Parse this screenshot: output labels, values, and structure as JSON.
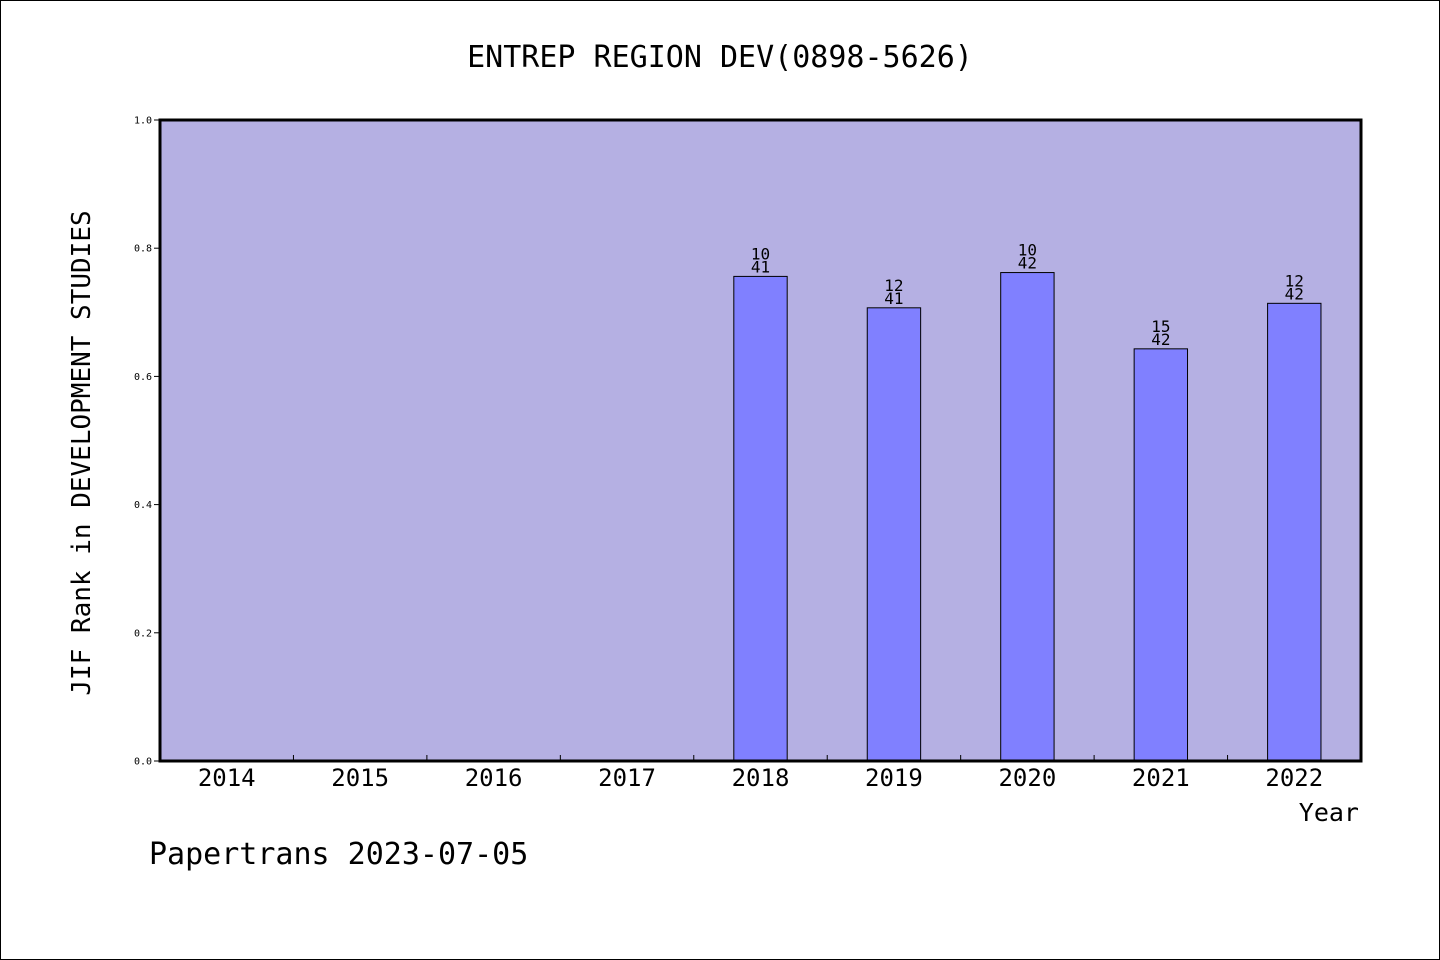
{
  "chart_data": {
    "type": "bar",
    "title": "ENTREP REGION DEV(0898-5626)",
    "xlabel": "Year",
    "ylabel": "JIF Rank in DEVELOPMENT STUDIES",
    "categories": [
      "2014",
      "2015",
      "2016",
      "2017",
      "2018",
      "2019",
      "2020",
      "2021",
      "2022"
    ],
    "values": [
      null,
      null,
      null,
      null,
      0.756,
      0.707,
      0.762,
      0.643,
      0.714
    ],
    "bar_labels": [
      null,
      null,
      null,
      null,
      [
        "10",
        "41"
      ],
      [
        "12",
        "41"
      ],
      [
        "10",
        "42"
      ],
      [
        "15",
        "42"
      ],
      [
        "12",
        "42"
      ]
    ],
    "ylim": [
      0,
      1.0
    ],
    "yticks": [
      "0.0",
      "0.2",
      "0.4",
      "0.6",
      "0.8",
      "1.0"
    ],
    "grid": false,
    "legend": "none",
    "colors": {
      "plot_background": "#b5b0e3",
      "bar_fill": "#8080ff",
      "bar_edge": "#000000",
      "axes": "#000000"
    }
  },
  "footer": {
    "credit": "Papertrans 2023-07-05"
  }
}
